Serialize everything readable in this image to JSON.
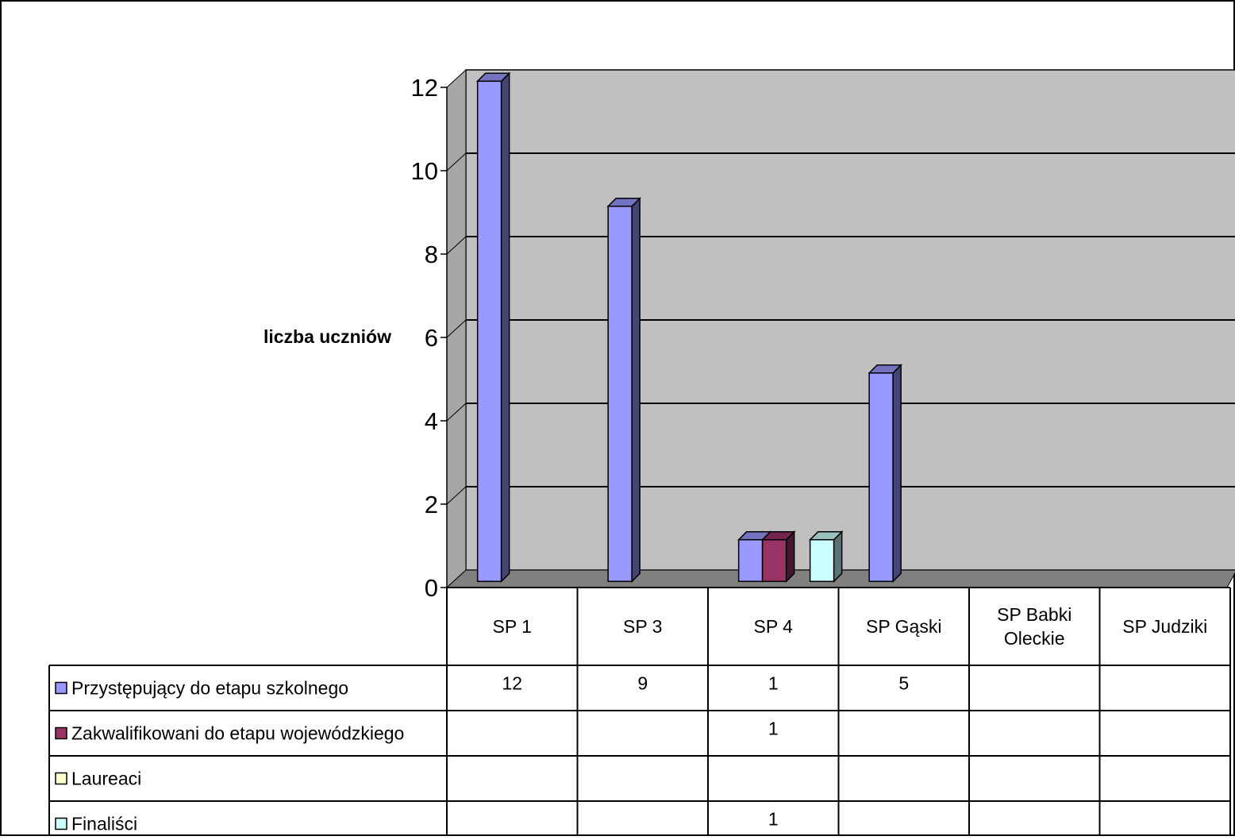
{
  "chart_data": {
    "type": "bar",
    "title": "",
    "xlabel": "",
    "ylabel": "liczba uczniów",
    "ylim": [
      0,
      12
    ],
    "ytick_step": 2,
    "yticks": [
      "0",
      "2",
      "4",
      "6",
      "8",
      "10",
      "12"
    ],
    "grid": true,
    "legend_placement": "data-table",
    "categories": [
      "SP 1",
      "SP 3",
      "SP 4",
      "SP Gąski",
      "SP Babki Oleckie",
      "SP Judziki"
    ],
    "series": [
      {
        "name": "Przystępujący do etapu szkolnego",
        "color": "#9999ff",
        "values": [
          12,
          9,
          1,
          5,
          null,
          null
        ]
      },
      {
        "name": "Zakwalifikowani do etapu wojewódzkiego",
        "color": "#993366",
        "values": [
          null,
          null,
          1,
          null,
          null,
          null
        ]
      },
      {
        "name": "Laureaci",
        "color": "#ffffcc",
        "values": [
          null,
          null,
          null,
          null,
          null,
          null
        ]
      },
      {
        "name": "Finaliści",
        "color": "#ccffff",
        "values": [
          null,
          null,
          1,
          null,
          null,
          null
        ]
      }
    ],
    "colors": {
      "wall": "#c0c0c0",
      "floor": "#808080",
      "gridline": "#000000",
      "background": "#ffffff"
    }
  }
}
